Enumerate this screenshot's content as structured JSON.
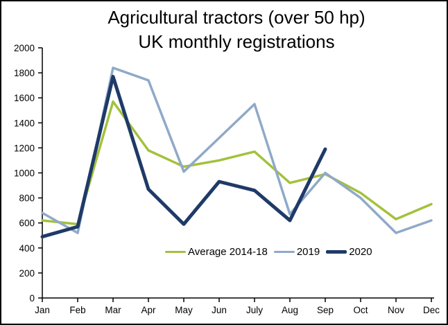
{
  "title": {
    "line1": "Agricultural tractors (over 50 hp)",
    "line2": "UK monthly registrations"
  },
  "chart_data": {
    "type": "line",
    "categories": [
      "Jan",
      "Feb",
      "Mar",
      "Apr",
      "May",
      "Jun",
      "July",
      "Aug",
      "Sep",
      "Oct",
      "Nov",
      "Dec"
    ],
    "series": [
      {
        "name": "Average 2014-18",
        "color": "#a3c13c",
        "stroke_width": 3.5,
        "values": [
          620,
          590,
          1570,
          1180,
          1050,
          1100,
          1170,
          920,
          990,
          840,
          630,
          750
        ]
      },
      {
        "name": "2019",
        "color": "#8fa9c8",
        "stroke_width": 3.5,
        "values": [
          680,
          520,
          1840,
          1740,
          1010,
          1280,
          1550,
          670,
          1000,
          800,
          520,
          620
        ]
      },
      {
        "name": "2020",
        "color": "#1f3a67",
        "stroke_width": 5,
        "values": [
          490,
          570,
          1770,
          870,
          590,
          930,
          860,
          620,
          1190,
          null,
          null,
          null
        ]
      }
    ],
    "ylim": [
      0,
      2000
    ],
    "ytick_step": 200,
    "grid": false,
    "legend_position": "bottom-center-inside",
    "axis_color": "#000000",
    "tick_label_color": "#000000"
  }
}
